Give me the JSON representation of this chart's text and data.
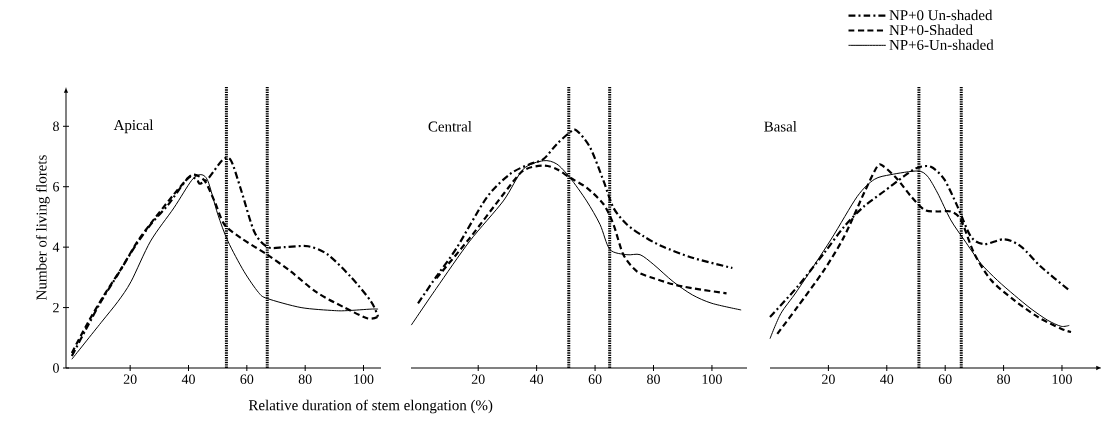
{
  "chart_data": [
    {
      "type": "line",
      "title": "Apical",
      "ylabel": "Number of living florets",
      "xlim": [
        -2,
        106
      ],
      "ylim": [
        0,
        9.3
      ],
      "xticks": [
        20,
        40,
        60,
        80,
        100
      ],
      "yticks": [
        0,
        2,
        4,
        6,
        8
      ],
      "grid": false,
      "legend": false,
      "marker": "none",
      "ref_lines": [
        {
          "axis": "x",
          "value": 53,
          "line_style": "dotted",
          "color": "#000000"
        },
        {
          "axis": "x",
          "value": 67,
          "line_style": "dotted",
          "color": "#000000"
        }
      ],
      "series": [
        {
          "color": "#000000",
          "line_style": "dashdot",
          "x": [
            0,
            5.5,
            10,
            15.8,
            21.5,
            27,
            33,
            40,
            43,
            44,
            47,
            51.8,
            54.6,
            58,
            62.6,
            67.2,
            73,
            81,
            87.8,
            95.8,
            102.6,
            105
          ],
          "values": [
            0.4,
            1.4,
            2.2,
            3.1,
            4.0,
            4.75,
            5.4,
            6.3,
            6.2,
            6.1,
            6.3,
            6.9,
            6.86,
            5.9,
            4.5,
            4.0,
            4.0,
            4.03,
            3.75,
            3.0,
            2.2,
            1.7
          ]
        },
        {
          "color": "#000000",
          "line_style": "dashed",
          "x": [
            0,
            5.5,
            11,
            17,
            22.6,
            28,
            35,
            40,
            42,
            45.5,
            49,
            52.3,
            58,
            67,
            75,
            84,
            93.5,
            101.5,
            105
          ],
          "values": [
            0.5,
            1.5,
            2.4,
            3.3,
            4.2,
            4.9,
            5.75,
            6.3,
            6.4,
            6.2,
            5.5,
            4.75,
            4.3,
            3.75,
            3.2,
            2.5,
            2.0,
            1.64,
            1.7
          ]
        },
        {
          "color": "#000000",
          "line_style": "solid",
          "x": [
            0,
            10,
            15.8,
            20.3,
            27,
            35,
            41,
            44,
            46.6,
            50,
            53.5,
            59,
            64,
            67,
            78.6,
            90,
            94.6,
            102.6,
            105
          ],
          "values": [
            0.29,
            1.5,
            2.2,
            2.86,
            4.2,
            5.3,
            6.2,
            6.4,
            6.2,
            5.1,
            4.2,
            3.2,
            2.5,
            2.3,
            2.0,
            1.9,
            1.9,
            1.95,
            1.95
          ]
        }
      ]
    },
    {
      "type": "line",
      "title": "Central",
      "xlabel": "Relative duration of stem elongation (%)",
      "xlim": [
        -3,
        112
      ],
      "ylim": [
        0,
        9.3
      ],
      "xticks": [
        20,
        40,
        60,
        80,
        100
      ],
      "tick_labels": "x",
      "grid": false,
      "legend": false,
      "marker": "none",
      "ref_lines": [
        {
          "axis": "x",
          "value": 51,
          "line_style": "dotted",
          "color": "#000000"
        },
        {
          "axis": "x",
          "value": 65,
          "line_style": "dotted",
          "color": "#000000"
        }
      ],
      "series": [
        {
          "color": "#000000",
          "line_style": "dashdot",
          "x": [
            -0.6,
            5.7,
            12.6,
            22.9,
            30.9,
            37.7,
            42.3,
            46.9,
            51.4,
            53.7,
            58.3,
            62.9,
            66.3,
            70.9,
            76.6,
            82.9,
            93.6,
            107
          ],
          "values": [
            2.14,
            3.03,
            3.97,
            5.64,
            6.42,
            6.75,
            6.91,
            7.41,
            7.8,
            7.86,
            7.3,
            6.19,
            5.3,
            4.75,
            4.36,
            4.03,
            3.64,
            3.31
          ]
        },
        {
          "color": "#000000",
          "line_style": "dashed",
          "x": [
            5.7,
            17.1,
            28.6,
            35.4,
            42.3,
            46.9,
            51.4,
            57.1,
            62.9,
            66.3,
            69.7,
            74.3,
            80.1,
            86.7,
            93.3,
            105
          ],
          "values": [
            2.97,
            4.3,
            5.75,
            6.53,
            6.7,
            6.58,
            6.3,
            5.97,
            5.42,
            4.75,
            3.75,
            3.2,
            2.97,
            2.77,
            2.64,
            2.47
          ]
        },
        {
          "color": "#000000",
          "line_style": "solid",
          "x": [
            -2.9,
            5.7,
            17.1,
            28.6,
            35.4,
            42.3,
            46.9,
            51.4,
            57.1,
            61.7,
            65.1,
            70.9,
            75.4,
            80.1,
            86.7,
            93.3,
            100,
            110
          ],
          "values": [
            1.42,
            2.64,
            4.2,
            5.53,
            6.58,
            6.86,
            6.75,
            6.3,
            5.53,
            4.75,
            3.92,
            3.75,
            3.75,
            3.42,
            2.86,
            2.42,
            2.14,
            1.92
          ]
        }
      ]
    },
    {
      "type": "line",
      "title": "Basal",
      "xlim": [
        0,
        112
      ],
      "ylim": [
        0,
        9.3
      ],
      "xticks": [
        20,
        40,
        60,
        80,
        100
      ],
      "tick_labels": "x",
      "grid": false,
      "legend": "top right",
      "marker": "none",
      "ref_lines": [
        {
          "axis": "x",
          "value": 51,
          "line_style": "dotted",
          "color": "#000000"
        },
        {
          "axis": "x",
          "value": 65.5,
          "line_style": "dotted",
          "color": "#000000"
        }
      ],
      "series": [
        {
          "name": "NP+0 Un-shaded",
          "color": "#000000",
          "line_style": "dashdot",
          "x": [
            0,
            9.4,
            18.5,
            25.4,
            32.2,
            39.1,
            45.9,
            50.5,
            55.1,
            59.7,
            64.2,
            68.8,
            73.4,
            80.2,
            86,
            92.8,
            102.5
          ],
          "values": [
            1.69,
            2.69,
            3.8,
            4.68,
            5.35,
            5.85,
            6.35,
            6.63,
            6.66,
            6.24,
            5.35,
            4.35,
            4.1,
            4.26,
            4.02,
            3.35,
            2.57
          ]
        },
        {
          "name": "NP+0-Shaded",
          "color": "#000000",
          "line_style": "dashed",
          "x": [
            2.5,
            9.4,
            18.5,
            25.4,
            32.2,
            36.8,
            39.1,
            43.7,
            48.3,
            52.8,
            57.4,
            61.9,
            65.4,
            69.9,
            75.7,
            83.7,
            91.7,
            99.7,
            103.1
          ],
          "values": [
            1.13,
            2.02,
            3.24,
            4.35,
            5.79,
            6.68,
            6.66,
            6.24,
            5.68,
            5.24,
            5.18,
            5.18,
            4.9,
            3.8,
            2.91,
            2.24,
            1.69,
            1.3,
            1.19
          ]
        },
        {
          "name": "NP+6-Un-shaded",
          "color": "#000000",
          "line_style": "solid",
          "x": [
            0,
            3.7,
            9.4,
            20.8,
            29.9,
            35.7,
            41.4,
            50.5,
            53.9,
            57.4,
            61.9,
            66.5,
            72.2,
            77.9,
            83.7,
            89.4,
            95.1,
            99.7,
            102.5
          ],
          "values": [
            0.97,
            1.8,
            2.57,
            4.24,
            5.68,
            6.24,
            6.4,
            6.52,
            6.35,
            5.79,
            4.9,
            4.24,
            3.46,
            2.9,
            2.41,
            1.96,
            1.58,
            1.38,
            1.41
          ]
        }
      ]
    }
  ]
}
